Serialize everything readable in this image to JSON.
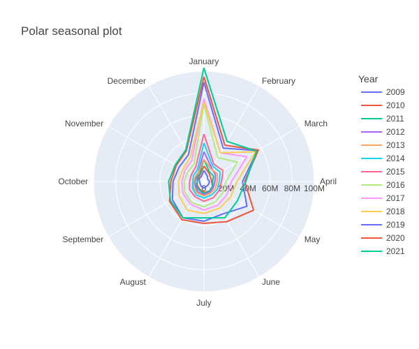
{
  "chart_data": {
    "type": "line",
    "subtype": "polar",
    "title": "Polar seasonal plot",
    "angular_categories": [
      "January",
      "February",
      "March",
      "April",
      "May",
      "June",
      "July",
      "August",
      "September",
      "October",
      "November",
      "December"
    ],
    "angular_direction": "clockwise",
    "angular_rotation": "January at top",
    "radial_ticks": [
      0,
      20,
      40,
      60,
      80,
      100
    ],
    "radial_tick_labels": [
      "0",
      "20M",
      "40M",
      "60M",
      "80M",
      "100M"
    ],
    "radial_range": [
      0,
      100
    ],
    "grid": true,
    "background": "#e5ecf6",
    "legend_title": "Year",
    "legend_position": "right",
    "series": [
      {
        "name": "2009",
        "color": "#636efa",
        "values": [
          10,
          6,
          4,
          5,
          5,
          5,
          6,
          5,
          4,
          4,
          5,
          5
        ]
      },
      {
        "name": "2010",
        "color": "#ef553b",
        "values": [
          14,
          9,
          7,
          7,
          9,
          10,
          10,
          8,
          7,
          6,
          6,
          7
        ]
      },
      {
        "name": "2011",
        "color": "#00cc96",
        "values": [
          20,
          10,
          10,
          8,
          9,
          10,
          11,
          9,
          8,
          6,
          7,
          8
        ]
      },
      {
        "name": "2012",
        "color": "#ab63fa",
        "values": [
          27,
          14,
          12,
          10,
          10,
          11,
          12,
          11,
          9,
          8,
          8,
          10
        ]
      },
      {
        "name": "2013",
        "color": "#ffa15a",
        "values": [
          20,
          13,
          14,
          12,
          12,
          12,
          13,
          12,
          11,
          9,
          9,
          10
        ]
      },
      {
        "name": "2014",
        "color": "#19d3f3",
        "values": [
          35,
          16,
          17,
          14,
          14,
          14,
          15,
          14,
          12,
          10,
          11,
          12
        ]
      },
      {
        "name": "2015",
        "color": "#ff6692",
        "values": [
          43,
          18,
          20,
          16,
          16,
          17,
          18,
          16,
          15,
          13,
          13,
          15
        ]
      },
      {
        "name": "2016",
        "color": "#b6e880",
        "values": [
          70,
          25,
          35,
          20,
          20,
          21,
          23,
          22,
          20,
          18,
          17,
          18
        ]
      },
      {
        "name": "2017",
        "color": "#ff97ff",
        "values": [
          75,
          30,
          45,
          25,
          24,
          25,
          26,
          24,
          22,
          20,
          20,
          22
        ]
      },
      {
        "name": "2018",
        "color": "#fecb52",
        "values": [
          72,
          30,
          54,
          30,
          28,
          28,
          29,
          30,
          26,
          23,
          22,
          25
        ]
      },
      {
        "name": "2019",
        "color": "#636efa",
        "values": [
          90,
          35,
          56,
          35,
          45,
          34,
          36,
          38,
          33,
          28,
          26,
          28
        ]
      },
      {
        "name": "2020",
        "color": "#ef553b",
        "values": [
          95,
          38,
          57,
          37,
          52,
          42,
          38,
          40,
          36,
          30,
          29,
          32
        ]
      },
      {
        "name": "2021",
        "color": "#00cc96",
        "values": [
          103,
          42,
          55,
          38,
          35,
          38,
          33,
          38,
          35,
          32,
          30,
          33
        ]
      }
    ]
  }
}
